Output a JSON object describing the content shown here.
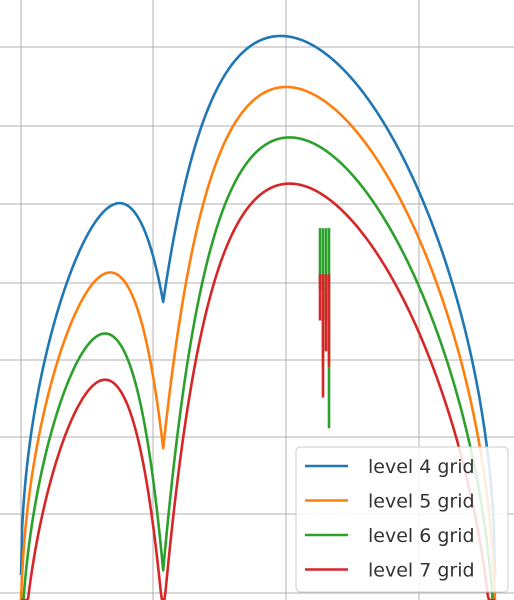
{
  "chart_data": {
    "type": "line",
    "grid": true,
    "legend_position": "bottom-right",
    "series": [
      {
        "name": "level 4 grid",
        "color": "#1f77b4",
        "base": 0.0,
        "dip_level": 0.45,
        "spikes": []
      },
      {
        "name": "level 5 grid",
        "color": "#ff7f0e",
        "base": 0.61,
        "dip_level": 0.65,
        "spikes": []
      },
      {
        "name": "level 6 grid",
        "color": "#2ca02c",
        "base": 1.23,
        "dip_level": 0.8,
        "spikes": [
          0.4,
          0.9,
          0.6,
          1.3
        ]
      },
      {
        "name": "level 7 grid",
        "color": "#d62728",
        "base": 1.83,
        "dip_level": 0.8,
        "spikes": [
          0.3,
          0.8,
          0.5,
          0.6
        ]
      }
    ]
  }
}
